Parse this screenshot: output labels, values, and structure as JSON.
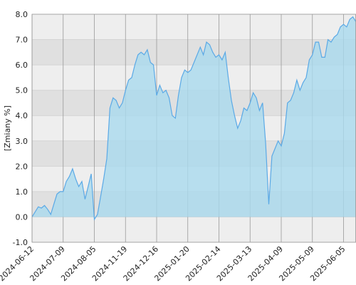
{
  "chart_data": {
    "type": "area",
    "y_label": "[Zmiany %]",
    "categories": [
      "2024-06-12",
      null,
      null,
      null,
      null,
      null,
      null,
      null,
      null,
      null,
      "2024-07-09",
      null,
      null,
      null,
      null,
      null,
      null,
      null,
      null,
      null,
      "2024-08-05",
      null,
      null,
      null,
      null,
      null,
      null,
      null,
      null,
      null,
      "2024-11-19",
      null,
      null,
      null,
      null,
      null,
      null,
      null,
      null,
      null,
      "2024-12-16",
      null,
      null,
      null,
      null,
      null,
      null,
      null,
      null,
      null,
      "2025-01-20",
      null,
      null,
      null,
      null,
      null,
      null,
      null,
      null,
      null,
      "2025-02-14",
      null,
      null,
      null,
      null,
      null,
      null,
      null,
      null,
      null,
      "2025-03-13",
      null,
      null,
      null,
      null,
      null,
      null,
      null,
      null,
      null,
      "2025-04-09",
      null,
      null,
      null,
      null,
      null,
      null,
      null,
      null,
      null,
      "2025-05-09",
      null,
      null,
      null,
      null,
      null,
      null,
      null,
      null,
      null,
      "2025-06-05",
      null,
      null,
      null,
      null
    ],
    "series": [
      {
        "color": "#5aa9e6",
        "fill": "#a9d9ee",
        "values": [
          0,
          0.2,
          0.4,
          0.35,
          0.45,
          0.3,
          0.1,
          0.5,
          0.9,
          1.0,
          1.0,
          1.4,
          1.6,
          1.9,
          1.5,
          1.2,
          1.4,
          0.7,
          1.2,
          1.7,
          -0.1,
          0.1,
          0.8,
          1.5,
          2.3,
          4.3,
          4.7,
          4.6,
          4.3,
          4.5,
          5.0,
          5.4,
          5.5,
          6.0,
          6.4,
          6.5,
          6.4,
          6.6,
          6.1,
          6.0,
          4.8,
          5.2,
          4.9,
          5.0,
          4.7,
          4.0,
          3.9,
          4.8,
          5.5,
          5.8,
          5.7,
          5.8,
          6.1,
          6.4,
          6.7,
          6.4,
          6.9,
          6.8,
          6.5,
          6.3,
          6.4,
          6.2,
          6.5,
          5.5,
          4.6,
          4.0,
          3.5,
          3.8,
          4.3,
          4.2,
          4.5,
          4.9,
          4.7,
          4.2,
          4.5,
          2.9,
          0.5,
          2.4,
          2.7,
          3.0,
          2.8,
          3.3,
          4.5,
          4.6,
          4.9,
          5.4,
          5.0,
          5.3,
          5.5,
          6.2,
          6.4,
          6.9,
          6.9,
          6.3,
          6.3,
          7.0,
          6.9,
          7.1,
          7.2,
          7.5,
          7.6,
          7.5,
          7.8,
          7.9,
          7.7
        ]
      }
    ],
    "ylim": [
      -1,
      8
    ],
    "yticks": [
      {
        "value": -1,
        "label": "-1.0"
      },
      {
        "value": 0,
        "label": "0.0"
      },
      {
        "value": 1,
        "label": "1.0"
      },
      {
        "value": 2,
        "label": "2.0"
      },
      {
        "value": 3,
        "label": "3.0"
      },
      {
        "value": 4,
        "label": "4.0"
      },
      {
        "value": 5,
        "label": "5.0"
      },
      {
        "value": 6,
        "label": "6.0"
      },
      {
        "value": 7,
        "label": "7.0"
      },
      {
        "value": 8,
        "label": "8.0"
      }
    ],
    "grid": true
  }
}
